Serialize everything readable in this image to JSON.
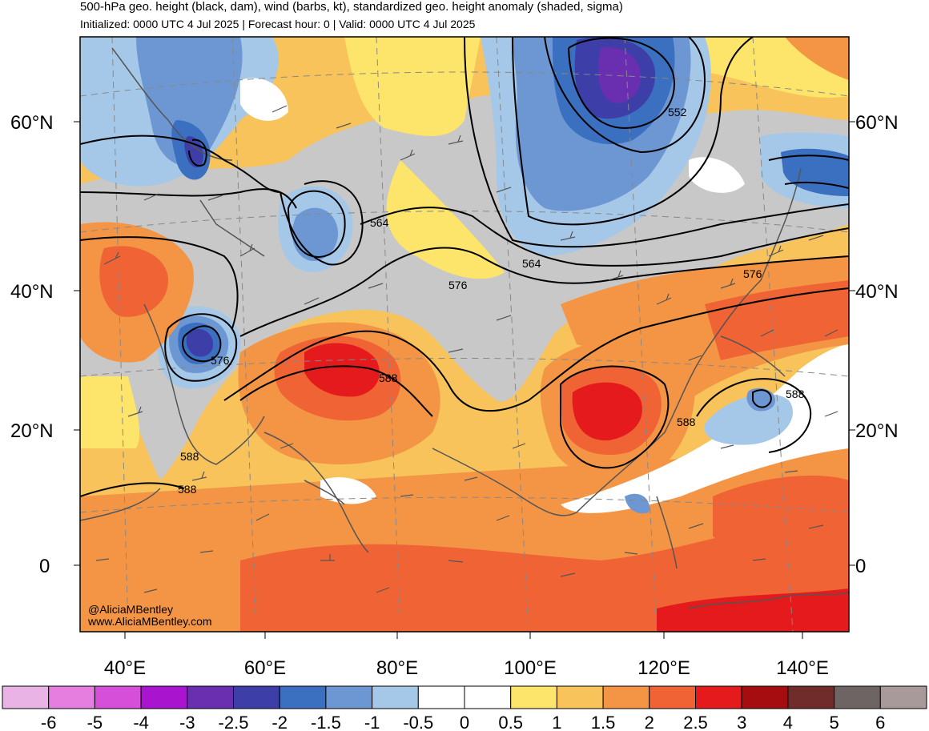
{
  "header": {
    "title": "500-hPa geo. height (black, dam), wind (barbs, kt), standardized geo. height anomaly (shaded, sigma)",
    "subtitle": "Initialized: 0000 UTC 4 Jul 2025 | Forecast hour: 0 | Valid: 0000 UTC 4 Jul 2025"
  },
  "map": {
    "lat_labels": [
      "60°N",
      "40°N",
      "20°N",
      "0"
    ],
    "lon_labels": [
      "40°E",
      "60°E",
      "80°E",
      "100°E",
      "120°E",
      "140°E"
    ],
    "contour_labels": [
      "552",
      "564",
      "564",
      "576",
      "576",
      "576",
      "588",
      "588",
      "588",
      "588",
      "588"
    ],
    "credit": [
      "@AliciaMBentley",
      "www.AliciaMBentley.com"
    ]
  },
  "colorbar": {
    "labels": [
      "-6",
      "-5",
      "-4",
      "-3",
      "-2.5",
      "-2",
      "-1.5",
      "-1",
      "-0.5",
      "0",
      "0.5",
      "1",
      "1.5",
      "2",
      "2.5",
      "3",
      "4",
      "5",
      "6"
    ],
    "colors": [
      "#e9b3e6",
      "#e67ee0",
      "#d64fd8",
      "#a915cf",
      "#6a2fb0",
      "#3d3ea8",
      "#3b6fc0",
      "#6d97d2",
      "#a6c8e8",
      "#ffffff",
      "#ffffff",
      "#fde46a",
      "#f7c35a",
      "#f39545",
      "#f06335",
      "#e41a1c",
      "#a50d10",
      "#6f2c2a",
      "#6f6464",
      "#a89a9a"
    ]
  },
  "colors": {
    "neutral_gray": "#c8c8c8",
    "coast": "#555555",
    "contour": "#000000"
  }
}
